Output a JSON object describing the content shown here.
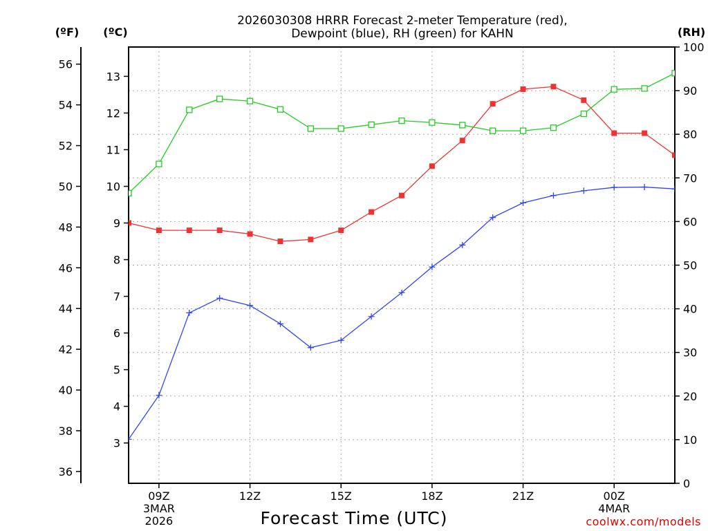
{
  "chart_data": {
    "type": "line",
    "title_line1": "2026030308 HRRR Forecast 2-meter Temperature (red),",
    "title_line2": "Dewpoint (blue), RH (green) for KAHN",
    "xlabel": "Forecast Time (UTC)",
    "credit": "coolwx.com/models",
    "units": {
      "fahrenheit": "(ºF)",
      "celsius": "(ºC)",
      "rh": "(RH)"
    },
    "x_hours": [
      8,
      9,
      10,
      11,
      12,
      13,
      14,
      15,
      16,
      17,
      18,
      19,
      20,
      21,
      22,
      23,
      24,
      25,
      26
    ],
    "xlim": [
      8,
      26
    ],
    "x_ticks": [
      {
        "hour": 9,
        "lines": [
          "09Z",
          "3MAR",
          "2026"
        ]
      },
      {
        "hour": 12,
        "lines": [
          "12Z"
        ]
      },
      {
        "hour": 15,
        "lines": [
          "15Z"
        ]
      },
      {
        "hour": 18,
        "lines": [
          "18Z"
        ]
      },
      {
        "hour": 21,
        "lines": [
          "21Z"
        ]
      },
      {
        "hour": 24,
        "lines": [
          "00Z",
          "4MAR"
        ]
      }
    ],
    "celsius_axis": {
      "ylim": [
        1.9,
        13.8
      ],
      "ticks": [
        3,
        4,
        5,
        6,
        7,
        8,
        9,
        10,
        11,
        12,
        13
      ]
    },
    "fahrenheit_axis": {
      "ylim": [
        35.42,
        56.84
      ],
      "ticks": [
        36,
        38,
        40,
        42,
        44,
        46,
        48,
        50,
        52,
        54,
        56
      ]
    },
    "rh_axis": {
      "ylim": [
        0,
        100
      ],
      "ticks": [
        0,
        10,
        20,
        30,
        40,
        50,
        60,
        70,
        80,
        90,
        100
      ]
    },
    "series": [
      {
        "name": "Temperature",
        "axis": "celsius",
        "color": "#ee3333",
        "marker": "filled-square",
        "values": [
          9.0,
          8.8,
          8.8,
          8.8,
          8.7,
          8.5,
          8.55,
          8.8,
          9.3,
          9.75,
          10.55,
          11.25,
          12.25,
          12.65,
          12.72,
          12.35,
          11.45,
          11.45,
          10.85
        ]
      },
      {
        "name": "Dewpoint",
        "axis": "celsius",
        "color": "#3344ee",
        "marker": "plus",
        "values": [
          3.1,
          4.3,
          6.55,
          6.95,
          6.75,
          6.25,
          5.6,
          5.8,
          6.45,
          7.1,
          7.8,
          8.4,
          9.15,
          9.55,
          9.75,
          9.88,
          9.97,
          9.98,
          9.93
        ]
      },
      {
        "name": "RH",
        "axis": "rh",
        "color": "#22cc22",
        "marker": "open-square",
        "values": [
          66.5,
          73.2,
          85.6,
          88.1,
          87.6,
          85.7,
          81.3,
          81.3,
          82.2,
          83.1,
          82.7,
          82.1,
          80.8,
          80.8,
          81.5,
          84.7,
          90.3,
          90.5,
          94.0
        ]
      }
    ]
  }
}
